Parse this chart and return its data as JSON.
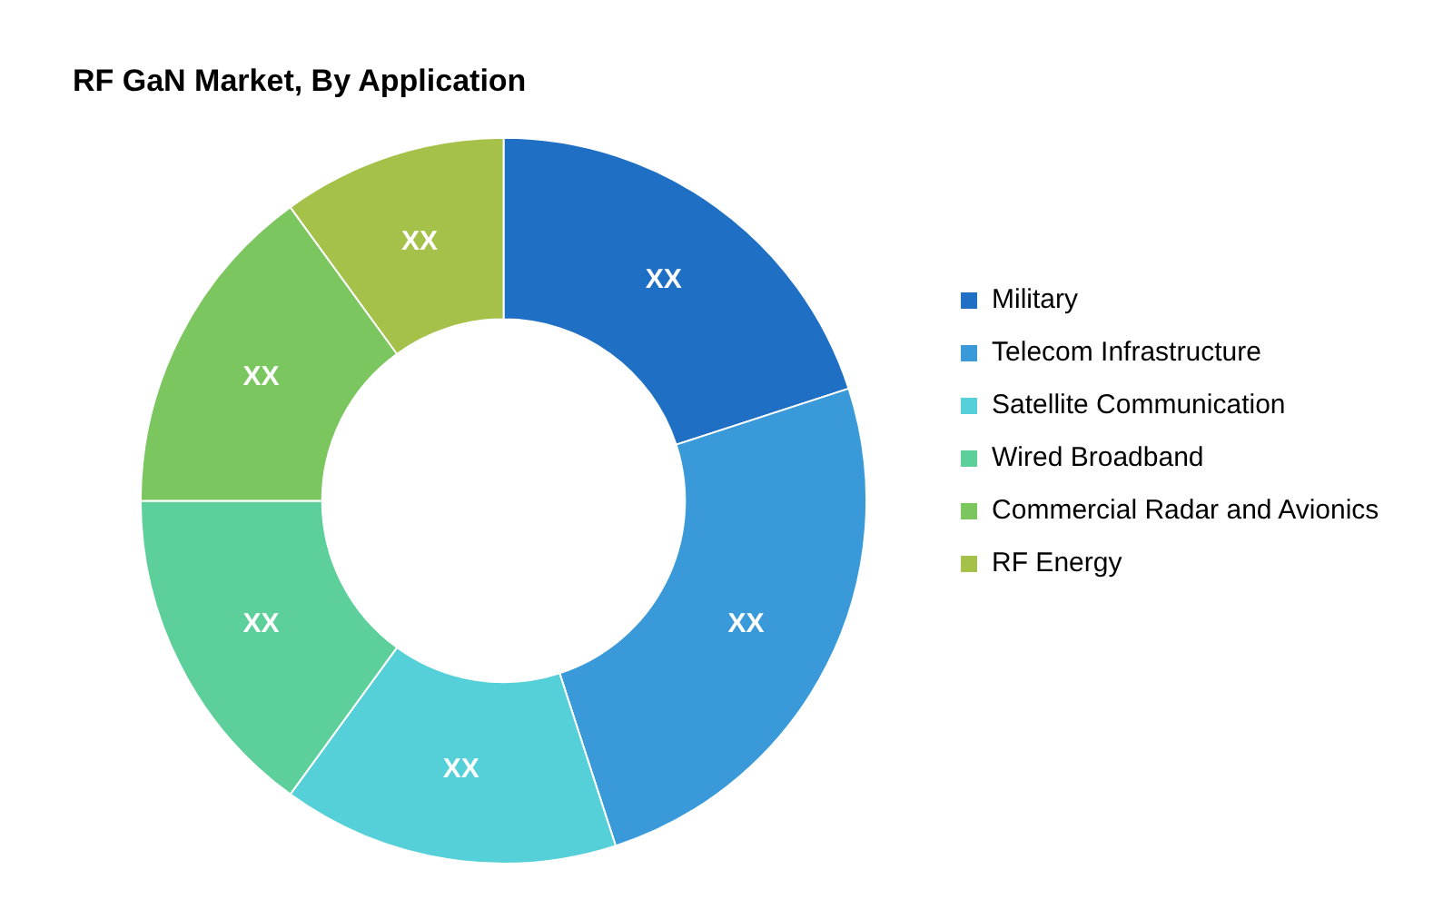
{
  "chart_data": {
    "type": "donut",
    "title": "RF GaN Market, By Application",
    "categories": [
      "Military",
      "Telecom Infrastructure",
      "Satellite Communication",
      "Wired Broadband",
      "Commercial Radar and Avionics",
      "RF Energy"
    ],
    "values": [
      20,
      25,
      15,
      15,
      15,
      10
    ],
    "colors": [
      "#1f6fc5",
      "#3a9ad9",
      "#56d0d8",
      "#5ccf9a",
      "#7cc660",
      "#a6c14a"
    ],
    "value_labels": [
      "XX",
      "XX",
      "XX",
      "XX",
      "XX",
      "XX"
    ],
    "legend": "right"
  }
}
